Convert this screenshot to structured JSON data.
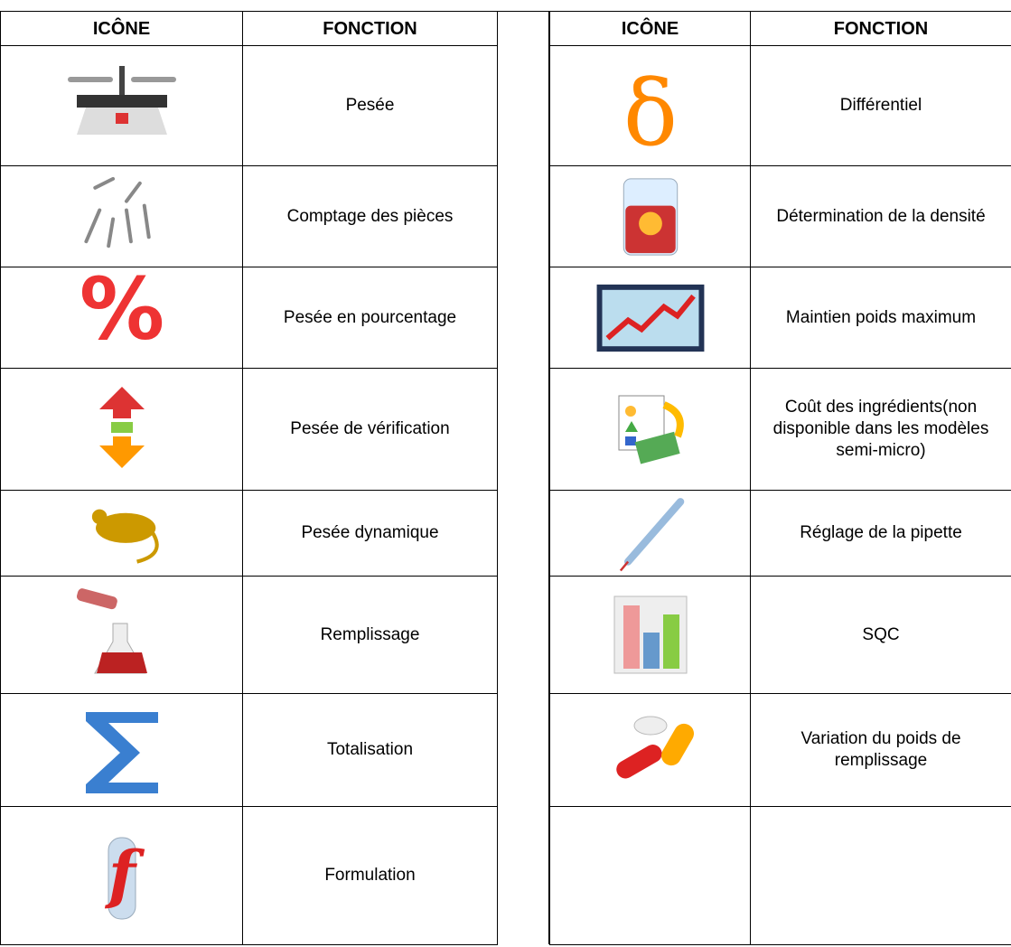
{
  "table": {
    "headers": [
      "ICÔNE",
      "FONCTION",
      "ICÔNE",
      "FONCTION"
    ],
    "left_rows": [
      "Pesée",
      "Comptage des pièces",
      "Pesée en pourcentage",
      "Pesée de vérification",
      "Pesée dynamique",
      "Remplissage",
      "Totalisation",
      "Formulation"
    ],
    "right_rows": [
      "Différentiel",
      "Détermination de la densité",
      "Maintien poids maximum",
      "Coût des ingrédients(non disponible dans les modèles semi-micro)",
      "Réglage de la pipette",
      "SQC",
      "Variation du poids de remplissage"
    ]
  }
}
